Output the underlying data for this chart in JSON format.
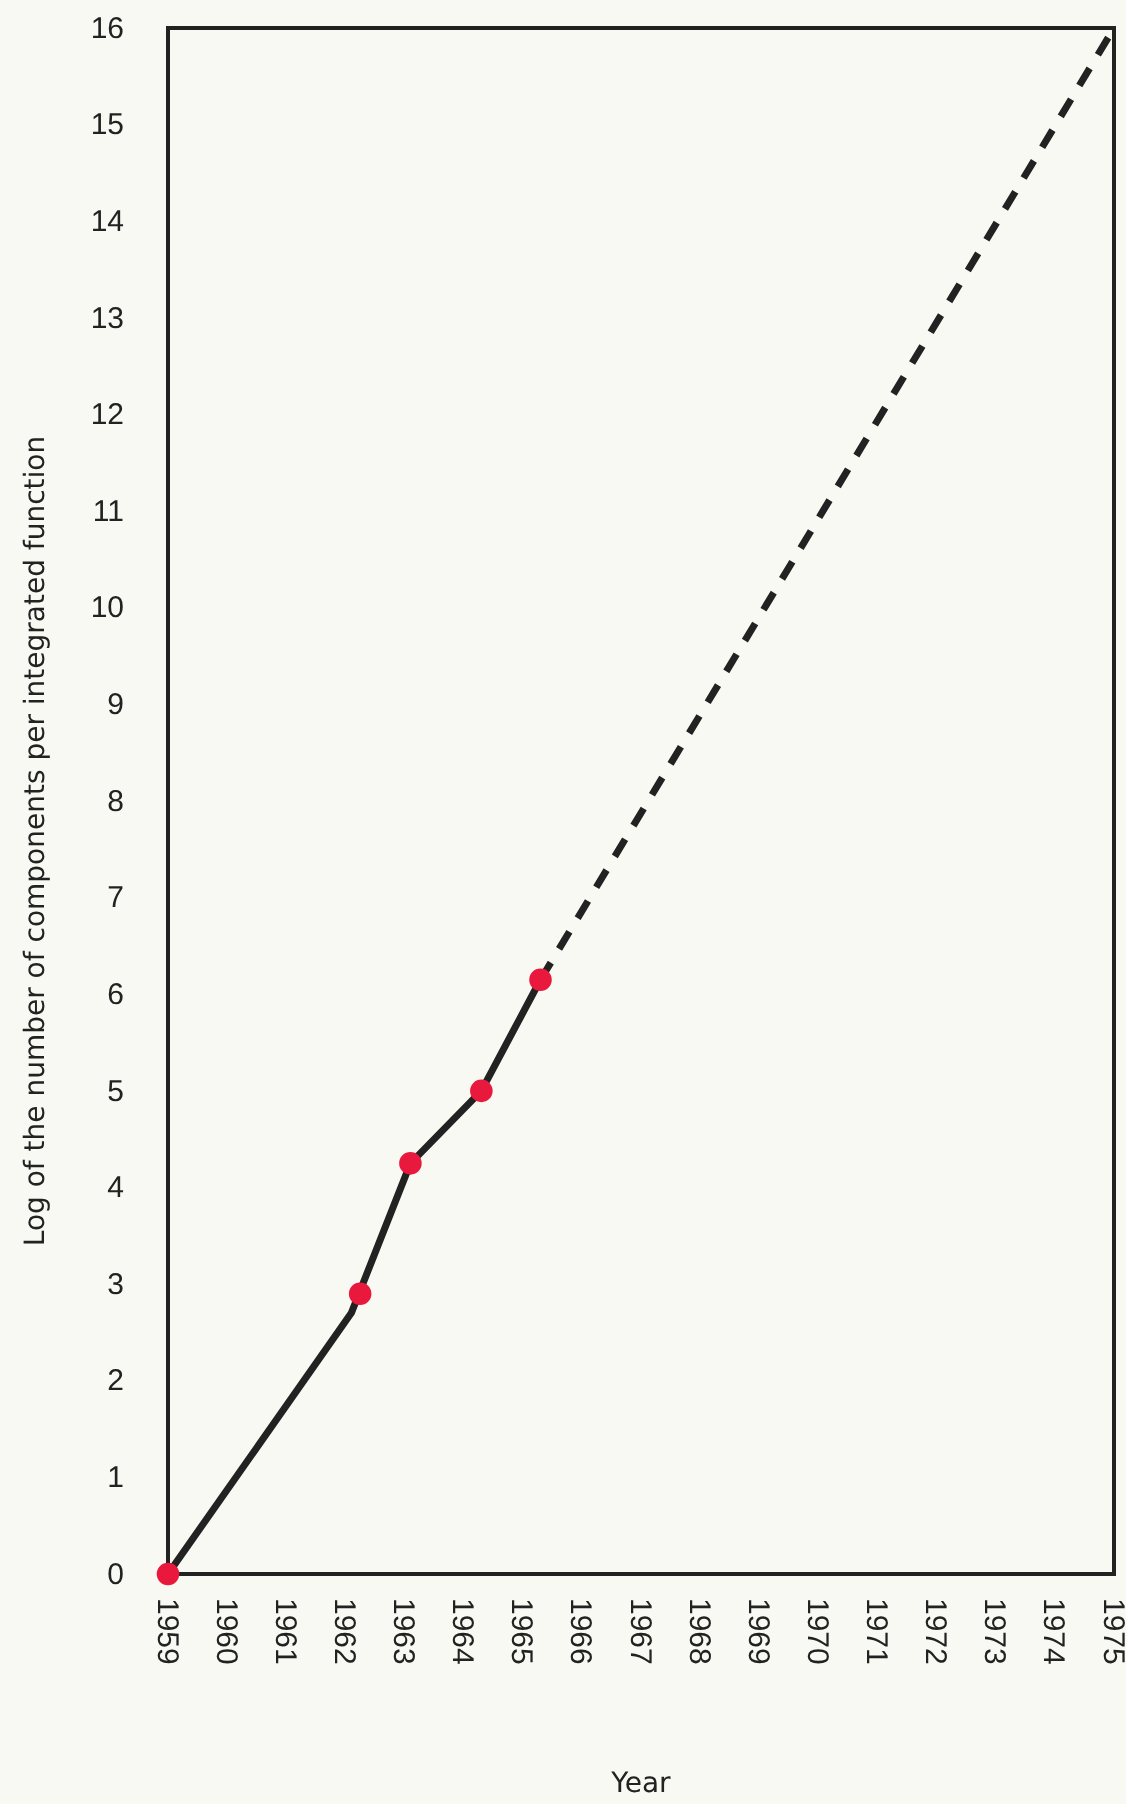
{
  "chart_data": {
    "type": "line",
    "xlabel": "Year",
    "ylabel": "Log of the number of components per integrated function",
    "xlim": [
      1959,
      1975
    ],
    "xticks": [
      1959,
      1960,
      1961,
      1962,
      1963,
      1964,
      1965,
      1966,
      1967,
      1968,
      1969,
      1970,
      1971,
      1972,
      1973,
      1974,
      1975
    ],
    "ylim": [
      0,
      16
    ],
    "yticks": [
      0,
      1,
      2,
      3,
      4,
      5,
      6,
      7,
      8,
      9,
      10,
      11,
      12,
      13,
      14,
      15,
      16
    ],
    "grid": false,
    "series": [
      {
        "color": "#222222",
        "line_style": "solid",
        "x": [
          1959,
          1962.1,
          1963.1,
          1964.3,
          1965.3
        ],
        "values": [
          0,
          2.7,
          4.25,
          5,
          6.15
        ]
      },
      {
        "color": "#222222",
        "line_style": "dashed",
        "x": [
          1965.3,
          1975
        ],
        "values": [
          6.15,
          16
        ]
      },
      {
        "type": "scatter",
        "color": "#e8193c",
        "marker": "circle",
        "x": [
          1959,
          1962.25,
          1963.1,
          1964.3,
          1965.3
        ],
        "values": [
          0,
          2.9,
          4.25,
          5,
          6.15
        ]
      }
    ]
  }
}
